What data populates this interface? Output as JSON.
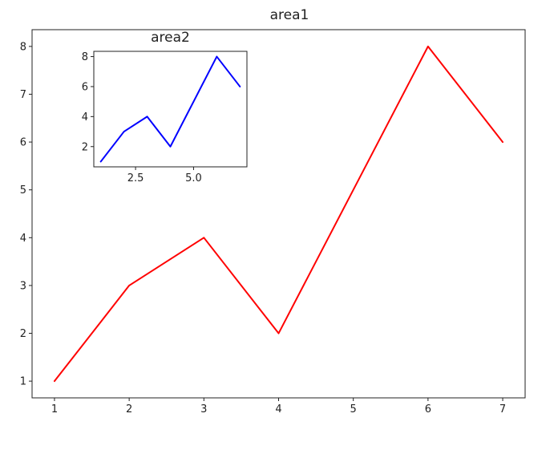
{
  "chart_data": [
    {
      "type": "line",
      "title": "area1",
      "x": [
        1,
        2,
        3,
        4,
        5,
        6,
        7
      ],
      "series": [
        {
          "values": [
            1,
            3,
            4,
            2,
            5,
            8,
            6
          ],
          "color": "#ff0000"
        }
      ],
      "xlim": [
        0.7,
        7.3
      ],
      "ylim": [
        0.65,
        8.35
      ],
      "xticks": [
        1,
        2,
        3,
        4,
        5,
        6,
        7
      ],
      "xtick_labels": [
        "1",
        "2",
        "3",
        "4",
        "5",
        "6",
        "7"
      ],
      "yticks": [
        1,
        2,
        3,
        4,
        5,
        6,
        7,
        8
      ],
      "ytick_labels": [
        "1",
        "2",
        "3",
        "4",
        "5",
        "6",
        "7",
        "8"
      ],
      "grid": false
    },
    {
      "type": "line",
      "title": "area2",
      "x": [
        1,
        2,
        3,
        4,
        5,
        6,
        7
      ],
      "series": [
        {
          "values": [
            1,
            3,
            4,
            2,
            5,
            8,
            6
          ],
          "color": "#0000ff"
        }
      ],
      "xlim": [
        0.7,
        7.3
      ],
      "ylim": [
        0.65,
        8.35
      ],
      "xticks": [
        2.5,
        5.0
      ],
      "xtick_labels": [
        "2.5",
        "5.0"
      ],
      "yticks": [
        2,
        4,
        6,
        8
      ],
      "ytick_labels": [
        "2",
        "4",
        "6",
        "8"
      ],
      "grid": false
    }
  ]
}
